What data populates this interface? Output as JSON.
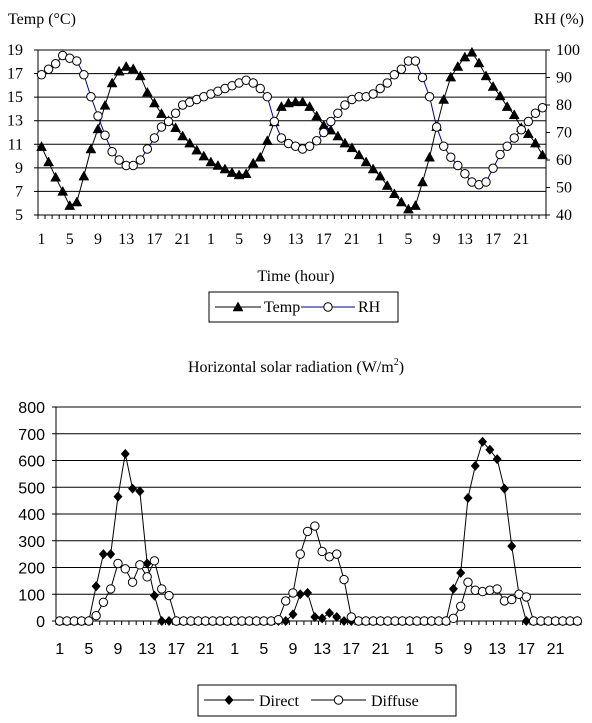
{
  "chart_data": [
    {
      "type": "line",
      "xlabel": "Time (hour)",
      "ylabel_left": "Temp (°C)",
      "ylabel_right": "RH (%)",
      "ylim_left": [
        5,
        19
      ],
      "ylim_right": [
        40,
        100
      ],
      "yticks_left": [
        "5",
        "7",
        "9",
        "11",
        "13",
        "15",
        "17",
        "19"
      ],
      "yticks_right": [
        "40",
        "50",
        "60",
        "70",
        "80",
        "90",
        "100"
      ],
      "xtick_labels": [
        "1",
        "5",
        "9",
        "13",
        "17",
        "21",
        "1",
        "5",
        "9",
        "13",
        "17",
        "21",
        "1",
        "5",
        "9",
        "13",
        "17",
        "21"
      ],
      "legend_position": "bottom",
      "grid": "horizontal",
      "series": [
        {
          "name": "Temp",
          "axis": "left",
          "marker": "filled-triangle",
          "color": "#000000",
          "values": [
            10.8,
            9.5,
            8.2,
            7.0,
            5.8,
            6.1,
            8.3,
            10.6,
            12.3,
            14.3,
            16.2,
            17.2,
            17.6,
            17.4,
            16.8,
            15.4,
            14.5,
            13.6,
            13.0,
            12.4,
            11.7,
            11.1,
            10.5,
            10.0,
            9.5,
            9.2,
            8.9,
            8.6,
            8.4,
            8.5,
            9.4,
            9.9,
            11.3,
            12.9,
            14.2,
            14.5,
            14.6,
            14.6,
            14.2,
            13.4,
            12.6,
            12.2,
            11.7,
            11.1,
            10.7,
            10.1,
            9.5,
            8.9,
            8.3,
            7.5,
            6.8,
            6.1,
            5.5,
            5.8,
            7.8,
            9.9,
            12.5,
            14.8,
            16.7,
            17.6,
            18.4,
            18.8,
            17.9,
            16.8,
            15.9,
            15.1,
            14.2,
            13.5,
            12.4,
            11.9,
            11.1,
            10.1
          ]
        },
        {
          "name": "RH",
          "axis": "right",
          "marker": "open-circle",
          "color": "#000080",
          "values": [
            91,
            93,
            95,
            98,
            97,
            96,
            91,
            83,
            76,
            69,
            63,
            60,
            58,
            58,
            60,
            64,
            68,
            72,
            74,
            77,
            80,
            81,
            82,
            83,
            84,
            85,
            86,
            87,
            88,
            89,
            88,
            86,
            83,
            74,
            68,
            66,
            65,
            64,
            65,
            67,
            70,
            74,
            77,
            80,
            82,
            83,
            83,
            84,
            86,
            88,
            91,
            93,
            96,
            96,
            90,
            83,
            72,
            65,
            61,
            58,
            55,
            52,
            51,
            52,
            57,
            62,
            65,
            68,
            71,
            74,
            77,
            79
          ]
        }
      ]
    },
    {
      "type": "line",
      "title": "Horizontal solar radiation (W/m²)",
      "ylim": [
        0,
        800
      ],
      "yticks": [
        "0",
        "100",
        "200",
        "300",
        "400",
        "500",
        "600",
        "700",
        "800"
      ],
      "xtick_labels": [
        "1",
        "5",
        "9",
        "13",
        "17",
        "21",
        "1",
        "5",
        "9",
        "13",
        "17",
        "21",
        "1",
        "5",
        "9",
        "13",
        "17",
        "21"
      ],
      "legend_position": "bottom",
      "grid": "horizontal",
      "series": [
        {
          "name": "Direct",
          "marker": "filled-diamond",
          "color": "#000000",
          "values": [
            0,
            0,
            0,
            0,
            0,
            130,
            250,
            250,
            465,
            625,
            495,
            485,
            215,
            95,
            0,
            0,
            0,
            0,
            0,
            0,
            0,
            0,
            0,
            0,
            0,
            0,
            0,
            0,
            0,
            0,
            0,
            0,
            25,
            100,
            105,
            15,
            10,
            30,
            15,
            0,
            0,
            0,
            0,
            0,
            0,
            0,
            0,
            0,
            0,
            0,
            0,
            0,
            0,
            0,
            120,
            180,
            460,
            580,
            670,
            640,
            605,
            495,
            280,
            100,
            0,
            0,
            0,
            0,
            0,
            0,
            0,
            0
          ]
        },
        {
          "name": "Diffuse",
          "marker": "open-circle",
          "color": "#000000",
          "values": [
            0,
            0,
            0,
            0,
            0,
            20,
            70,
            120,
            215,
            195,
            145,
            210,
            165,
            225,
            120,
            95,
            0,
            0,
            0,
            0,
            0,
            0,
            0,
            0,
            0,
            0,
            0,
            0,
            0,
            0,
            5,
            75,
            105,
            250,
            335,
            355,
            260,
            240,
            250,
            155,
            15,
            0,
            0,
            0,
            0,
            0,
            0,
            0,
            0,
            0,
            0,
            0,
            0,
            0,
            10,
            55,
            145,
            115,
            110,
            115,
            120,
            75,
            80,
            100,
            90,
            0,
            0,
            0,
            0,
            0,
            0,
            0
          ]
        }
      ]
    }
  ]
}
